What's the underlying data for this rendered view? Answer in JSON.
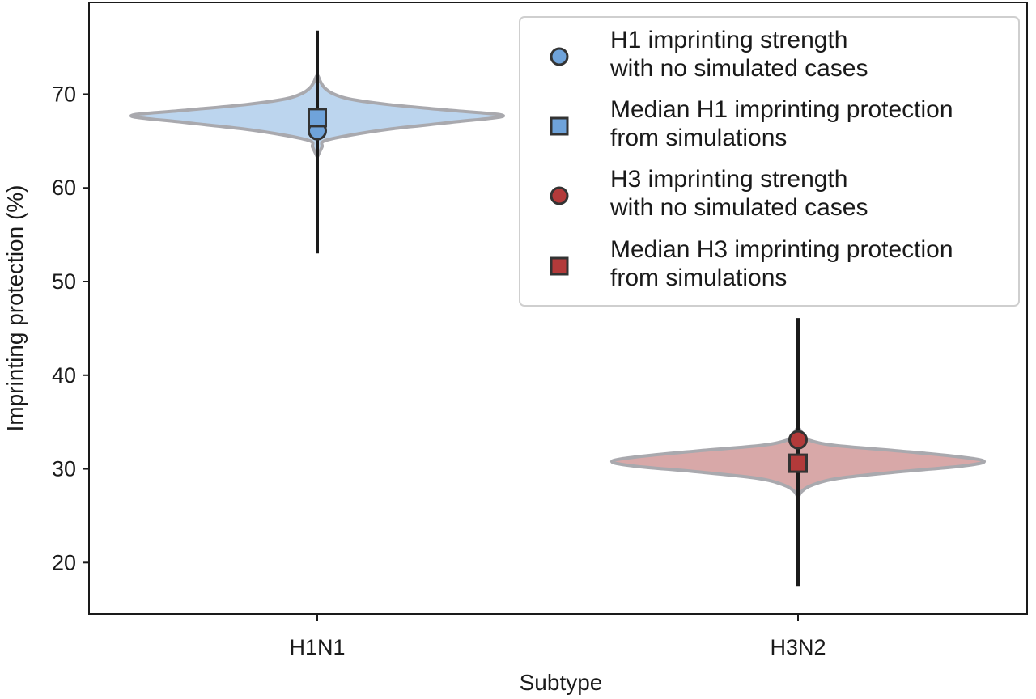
{
  "chart_data": {
    "type": "violin",
    "title": "",
    "xlabel": "Subtype",
    "ylabel": "Imprinting protection (%)",
    "categories": [
      "H1N1",
      "H3N2"
    ],
    "ylim": [
      14.5,
      79.8
    ],
    "yticks": [
      20,
      30,
      40,
      50,
      60,
      70
    ],
    "grid": false,
    "legend_position": "top-right",
    "violins": [
      {
        "category": "H1N1",
        "fill_color": "#bcd5ee",
        "edge_color": "#a9a9ae",
        "range": [
          63.3,
          72.0
        ],
        "profile": [
          [
            63.3,
            0.0
          ],
          [
            63.8,
            0.012
          ],
          [
            64.4,
            0.026
          ],
          [
            65.0,
            0.036
          ],
          [
            65.6,
            0.17
          ],
          [
            66.3,
            0.4
          ],
          [
            67.0,
            0.72
          ],
          [
            67.7,
            1.0
          ],
          [
            68.3,
            0.7
          ],
          [
            68.9,
            0.38
          ],
          [
            69.5,
            0.17
          ],
          [
            70.1,
            0.08
          ],
          [
            70.7,
            0.038
          ],
          [
            71.3,
            0.018
          ],
          [
            72.0,
            0.0
          ]
        ]
      },
      {
        "category": "H3N2",
        "fill_color": "#d8a8a8",
        "edge_color": "#a9a9ae",
        "range": [
          26.9,
          34.4
        ],
        "profile": [
          [
            26.9,
            0.0
          ],
          [
            27.6,
            0.02
          ],
          [
            28.3,
            0.08
          ],
          [
            29.0,
            0.22
          ],
          [
            29.7,
            0.55
          ],
          [
            30.3,
            0.88
          ],
          [
            30.8,
            1.0
          ],
          [
            31.3,
            0.86
          ],
          [
            31.9,
            0.55
          ],
          [
            32.5,
            0.2
          ],
          [
            33.0,
            0.07
          ],
          [
            33.5,
            0.035
          ],
          [
            34.0,
            0.016
          ],
          [
            34.4,
            0.0
          ]
        ]
      }
    ],
    "error_bars": [
      {
        "category": "H1N1",
        "low": 53.0,
        "high": 76.8
      },
      {
        "category": "H3N2",
        "low": 17.5,
        "high": 46.1
      }
    ],
    "series": [
      {
        "name": "H1 imprinting strength\nwith no simulated cases",
        "marker": "circle",
        "color": "#6fa3da",
        "points": [
          {
            "category": "H1N1",
            "y": 66.1
          }
        ]
      },
      {
        "name": "Median H1 imprinting protection\nfrom simulations",
        "marker": "square",
        "color": "#6fa3da",
        "points": [
          {
            "category": "H1N1",
            "y": 67.5
          }
        ]
      },
      {
        "name": "H3 imprinting strength\nwith no simulated cases",
        "marker": "circle",
        "color": "#b33a3a",
        "points": [
          {
            "category": "H3N2",
            "y": 33.1
          }
        ]
      },
      {
        "name": "Median H3 imprinting protection\nfrom simulations",
        "marker": "square",
        "color": "#b33a3a",
        "points": [
          {
            "category": "H3N2",
            "y": 30.6
          }
        ]
      }
    ]
  }
}
